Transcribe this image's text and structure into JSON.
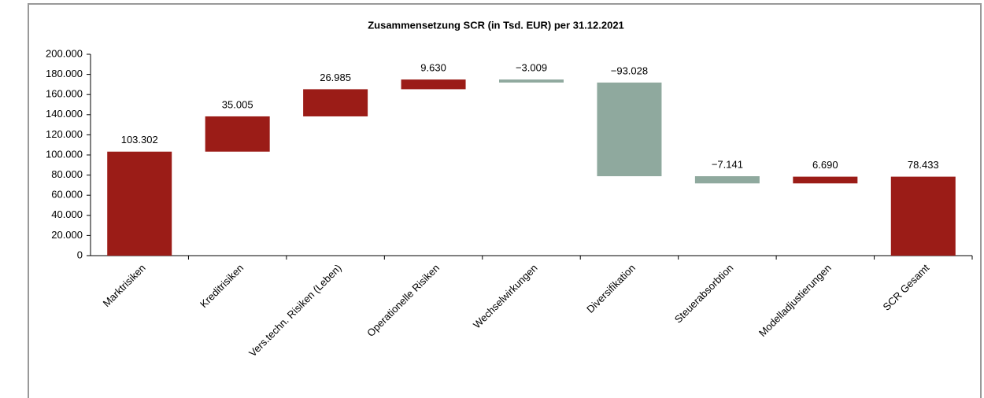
{
  "chart_data": {
    "type": "waterfall",
    "title": "Zusammensetzung SCR (in Tsd. EUR) per 31.12.2021",
    "categories": [
      "Marktrisiken",
      "Kreditrisiken",
      "Vers.techn. Risiken (Leben)",
      "Operationelle Risiken",
      "Wechselwirkungen",
      "Diversifikation",
      "Steuerabsorbtion",
      "Modelladjustierungen",
      "SCR Gesamt"
    ],
    "values": [
      103302,
      35005,
      26985,
      9630,
      -3009,
      -93028,
      -7141,
      6690,
      78433
    ],
    "value_labels": [
      "103.302",
      "35.005",
      "26.985",
      "9.630",
      "−3.009",
      "−93.028",
      "−7.141",
      "6.690",
      "78.433"
    ],
    "measure": [
      "relative",
      "relative",
      "relative",
      "relative",
      "relative",
      "relative",
      "relative",
      "relative",
      "total"
    ],
    "increase_color": "#9b1c17",
    "decrease_color": "#8fa99e",
    "total_color": "#9b1c17",
    "ylim": [
      0,
      200000
    ],
    "yticks": [
      0,
      {
        "value": 20000,
        "label": "20.000"
      },
      {
        "value": 40000,
        "label": "40.000"
      },
      {
        "value": 60000,
        "label": "60.000"
      },
      {
        "value": 80000,
        "label": "80.000"
      },
      {
        "value": 100000,
        "label": "100.000"
      },
      {
        "value": 120000,
        "label": "120.000"
      },
      {
        "value": 140000,
        "label": "140.000"
      },
      {
        "value": 160000,
        "label": "160.000"
      },
      {
        "value": 180000,
        "label": "180.000"
      },
      {
        "value": 200000,
        "label": "200.000"
      }
    ]
  }
}
